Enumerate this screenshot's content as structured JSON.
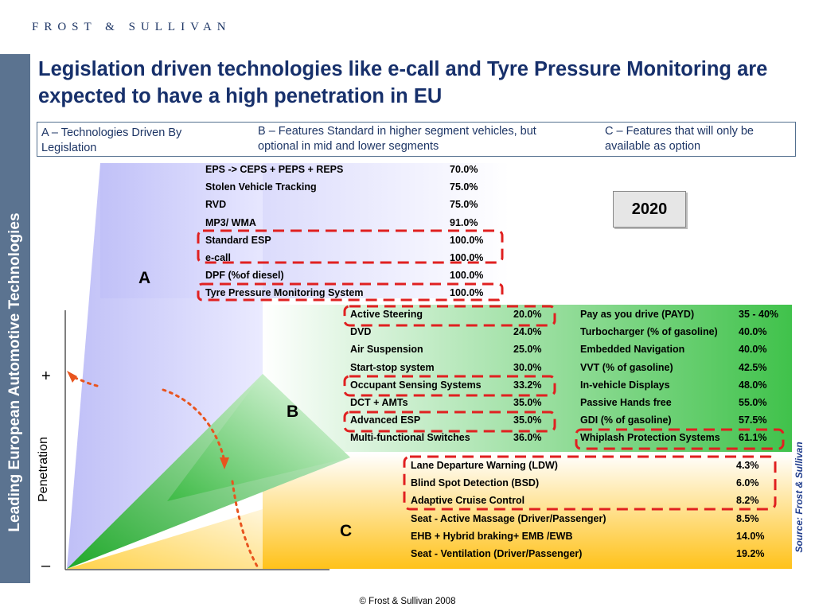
{
  "brand": "FROST & SULLIVAN",
  "sidebar_title": "Leading European Automotive Technologies",
  "title": "Legislation driven technologies like e-call and Tyre Pressure Monitoring are expected to have a high penetration in EU",
  "legend": {
    "a": "A – Technologies Driven By Legislation",
    "b": "B – Features Standard in higher segment vehicles, but optional in mid and lower segments",
    "c": "C – Features that will only be available as option"
  },
  "year": "2020",
  "axis": {
    "plus": "+",
    "minus": "–",
    "label": "Penetration"
  },
  "category_labels": {
    "a": "A",
    "b": "B",
    "c": "C"
  },
  "group_a": [
    {
      "name": "EPS -> CEPS + PEPS + REPS",
      "value": "70.0%"
    },
    {
      "name": "Stolen Vehicle Tracking",
      "value": "75.0%"
    },
    {
      "name": "RVD",
      "value": "75.0%"
    },
    {
      "name": "MP3/ WMA",
      "value": "91.0%"
    },
    {
      "name": "Standard ESP",
      "value": "100.0%"
    },
    {
      "name": "e-call",
      "value": "100.0%"
    },
    {
      "name": "DPF (%of diesel)",
      "value": "100.0%"
    },
    {
      "name": "Tyre Pressure Monitoring System",
      "value": "100.0%"
    }
  ],
  "group_b_left": [
    {
      "name": "Active Steering",
      "value": "20.0%"
    },
    {
      "name": "DVD",
      "value": "24.0%"
    },
    {
      "name": "Air Suspension",
      "value": "25.0%"
    },
    {
      "name": "Start-stop system",
      "value": "30.0%"
    },
    {
      "name": "Occupant Sensing Systems",
      "value": "33.2%"
    },
    {
      "name": "DCT + AMTs",
      "value": "35.0%"
    },
    {
      "name": "Advanced ESP",
      "value": "35.0%"
    },
    {
      "name": "Multi-functional Switches",
      "value": "36.0%"
    }
  ],
  "group_b_right": [
    {
      "name": "Pay as you drive (PAYD)",
      "value": "35 - 40%"
    },
    {
      "name": "Turbocharger (% of gasoline)",
      "value": "40.0%"
    },
    {
      "name": "Embedded Navigation",
      "value": "40.0%"
    },
    {
      "name": "VVT (% of gasoline)",
      "value": "42.5%"
    },
    {
      "name": "In-vehicle Displays",
      "value": "48.0%"
    },
    {
      "name": "Passive Hands free",
      "value": "55.0%"
    },
    {
      "name": "GDI (% of gasoline)",
      "value": "57.5%"
    },
    {
      "name": "Whiplash Protection Systems",
      "value": "61.1%"
    }
  ],
  "group_c": [
    {
      "name": "Lane Departure Warning (LDW)",
      "value": "4.3%"
    },
    {
      "name": "Blind Spot Detection (BSD)",
      "value": "6.0%"
    },
    {
      "name": "Adaptive Cruise Control",
      "value": "8.2%"
    },
    {
      "name": "Seat - Active Massage (Driver/Passenger)",
      "value": "8.5%"
    },
    {
      "name": "EHB + Hybrid braking+ EMB /EWB",
      "value": "14.0%"
    },
    {
      "name": "Seat - Ventilation (Driver/Passenger)",
      "value": "19.2%"
    }
  ],
  "source": "Source: Frost & Sullivan",
  "footer": "© Frost & Sullivan 2008",
  "colors": {
    "navy": "#17306b",
    "sidebar": "#5b7390",
    "highlight_dash": "#e02020",
    "arrow_dots": "#e8541e",
    "region_a": "#c9c9fb",
    "region_b": "#3fc24a",
    "region_c": "#ffc21a"
  }
}
